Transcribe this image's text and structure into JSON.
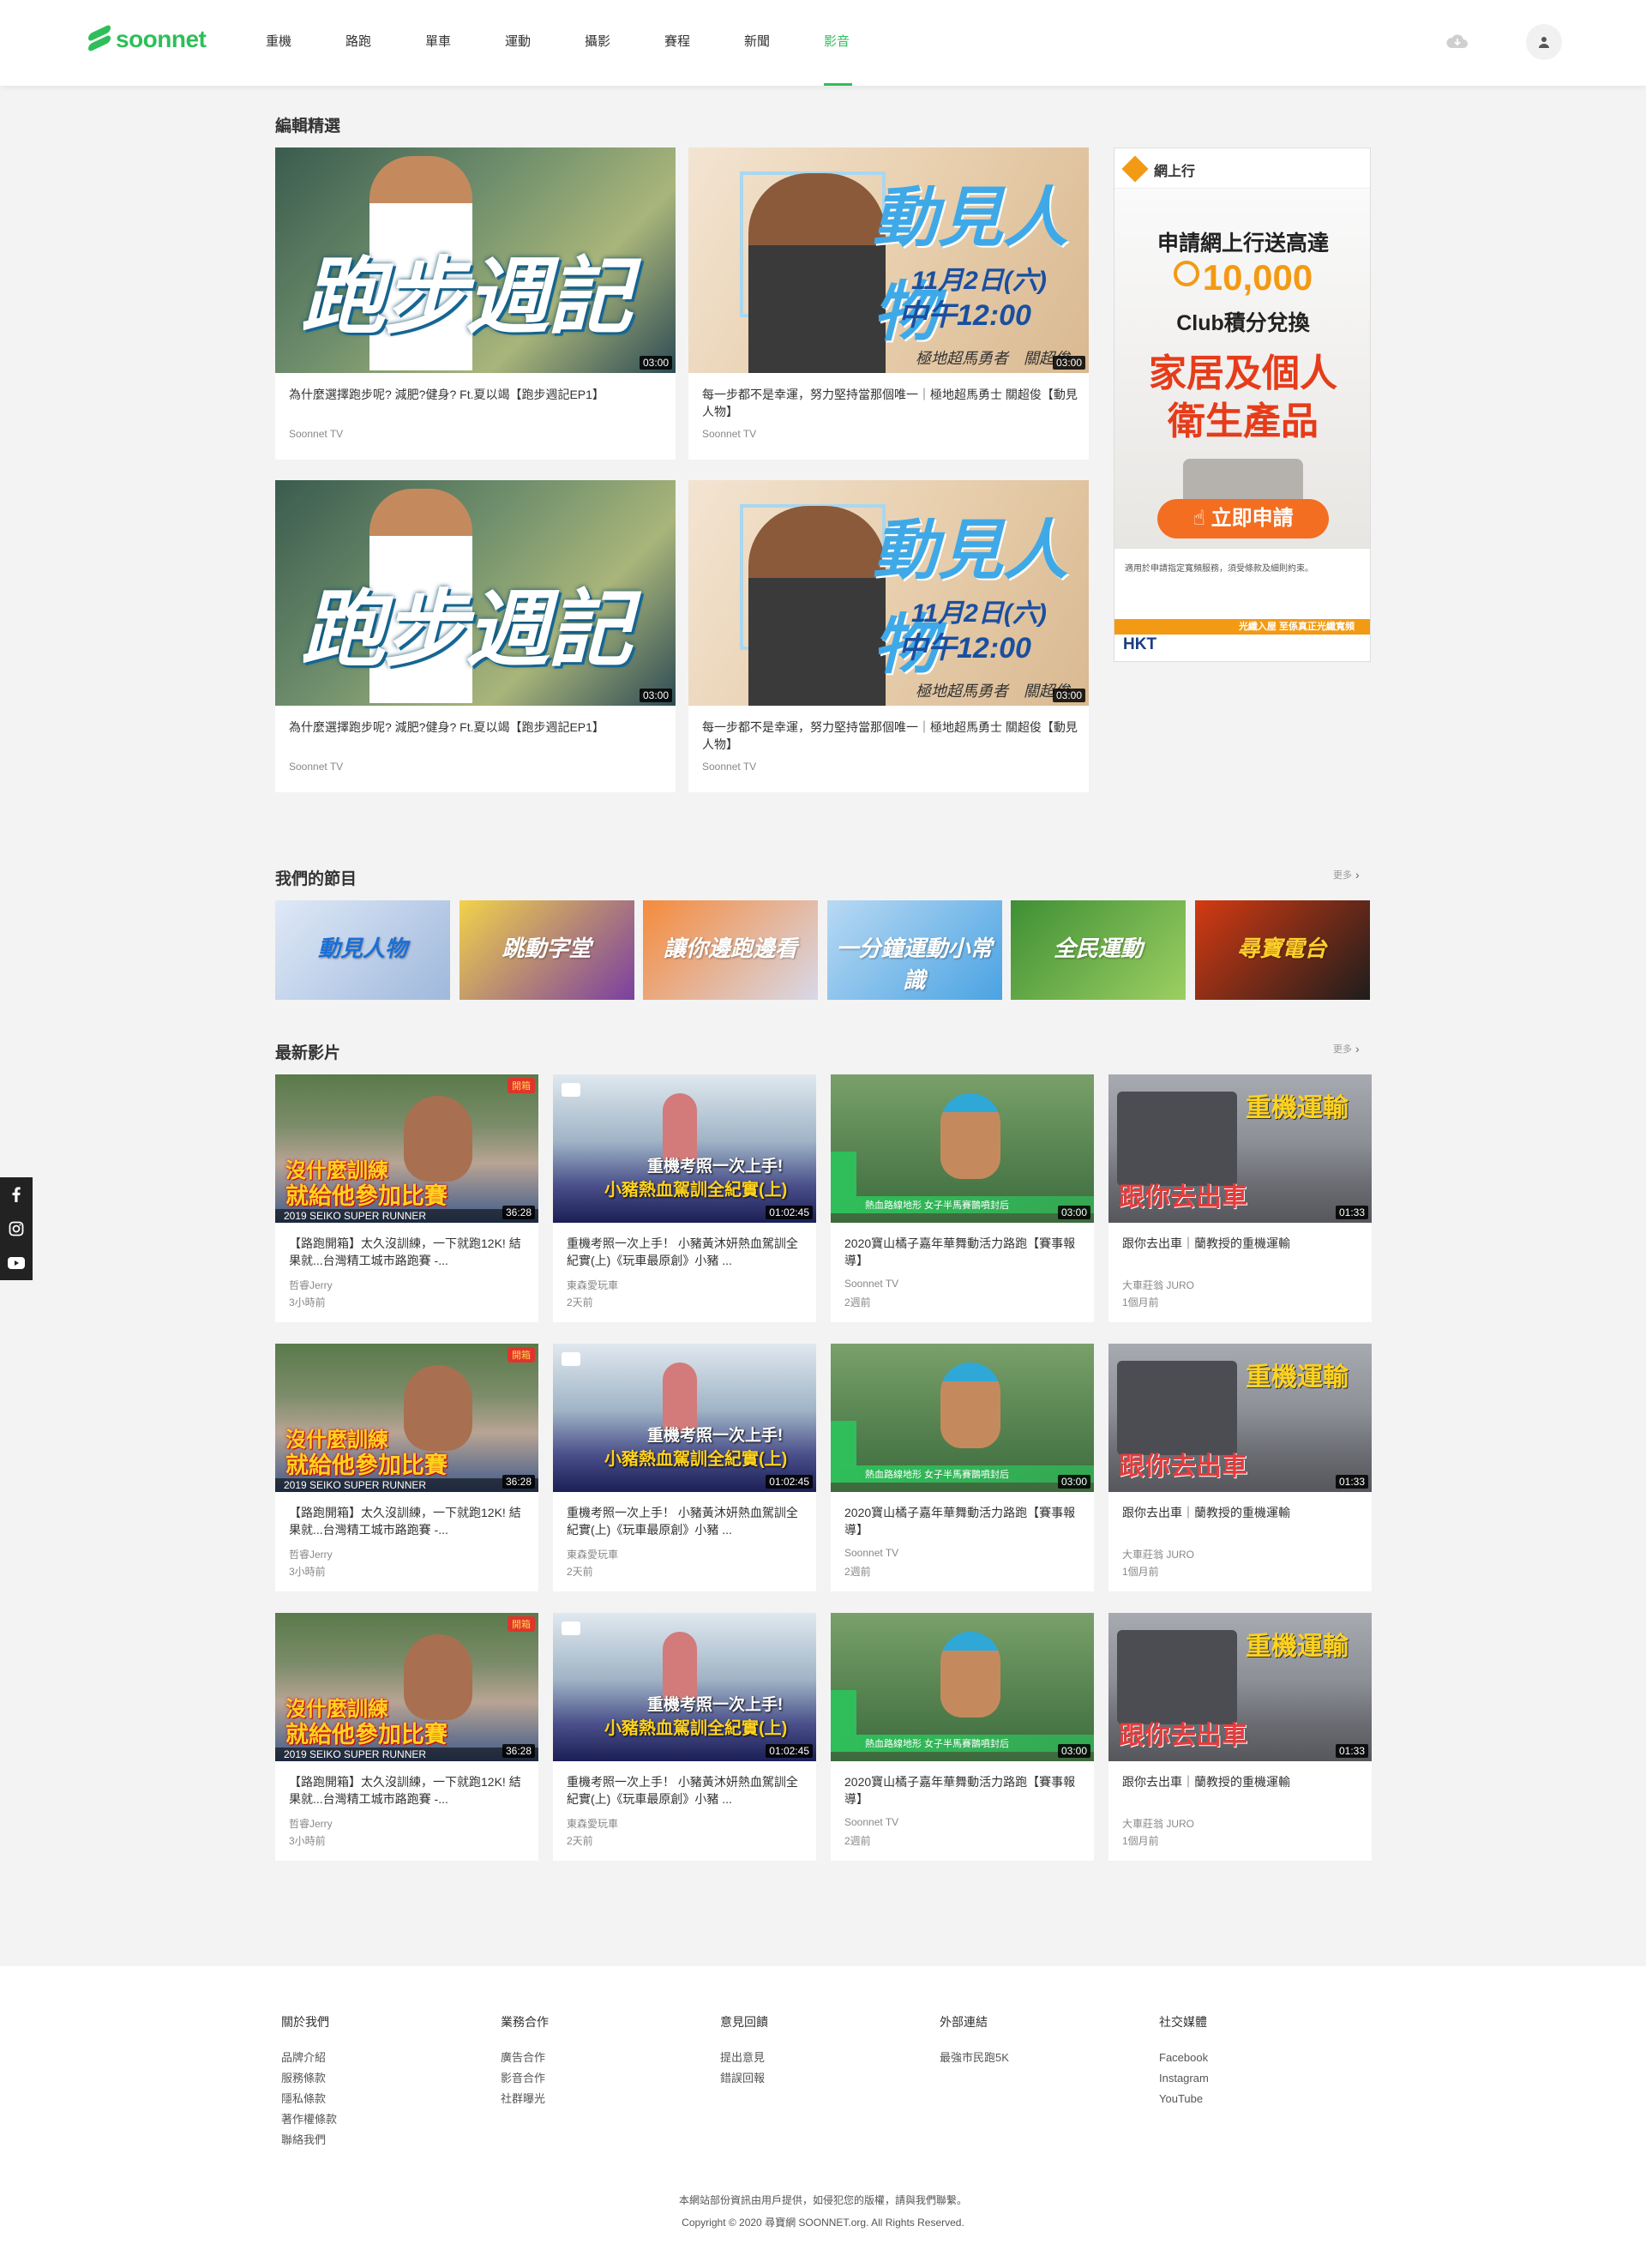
{
  "header": {
    "logo": "soonnet",
    "nav": [
      "重機",
      "路跑",
      "單車",
      "運動",
      "攝影",
      "賽程",
      "新聞",
      "影音"
    ],
    "active_index": 7,
    "icons": [
      "cloud-icon",
      "user-icon"
    ]
  },
  "featured": {
    "title": "編輯精選",
    "cards": [
      {
        "title": "為什麼選擇跑步呢? 減肥?健身? Ft.夏以竭【跑步週記EP1】",
        "author": "Soonnet TV",
        "duration": "03:00",
        "thumb_text": "跑步週記",
        "kind": "run"
      },
      {
        "title": "每一步都不是幸運，努力堅持當那個唯一｜極地超馬勇士 關超俊【動見人物】",
        "author": "Soonnet TV",
        "duration": "03:00",
        "thumb_text": "動見人物",
        "thumb_sub": "11月2日(六)",
        "thumb_time": "中午12:00",
        "thumb_tag": "極地超馬勇者　關超俊",
        "kind": "people"
      },
      {
        "title": "為什麼選擇跑步呢? 減肥?健身? Ft.夏以竭【跑步週記EP1】",
        "author": "Soonnet TV",
        "duration": "03:00",
        "thumb_text": "跑步週記",
        "kind": "run"
      },
      {
        "title": "每一步都不是幸運，努力堅持當那個唯一｜極地超馬勇士 關超俊【動見人物】",
        "author": "Soonnet TV",
        "duration": "03:00",
        "thumb_text": "動見人物",
        "thumb_sub": "11月2日(六)",
        "thumb_time": "中午12:00",
        "thumb_tag": "極地超馬勇者　關超俊",
        "kind": "people"
      }
    ]
  },
  "ad": {
    "brand": "網上行",
    "line1": "申請網上行送高達",
    "amount": "10,000",
    "line2": "Club積分兌換",
    "big1": "家居及個人",
    "big2": "衛生產品",
    "cta": "立即申請",
    "fine": "適用於申請指定寬頻服務，須受條款及細則約束。",
    "strip": "光纖入屋 至係真正光纖寬頻",
    "hkt": "HKT"
  },
  "programs": {
    "title": "我們的節目",
    "more": "更多",
    "items": [
      {
        "label": "動見人物",
        "color1": "#dfe9f7",
        "color2": "#9fb8dc",
        "tc": "#1a6fd6"
      },
      {
        "label": "跳動字堂",
        "color1": "#f2d24a",
        "color2": "#7b3fa0",
        "tc": "#fff"
      },
      {
        "label": "讓你邊跑邊看",
        "color1": "#f58b3c",
        "color2": "#d8d8e8",
        "tc": "#fff"
      },
      {
        "label": "一分鐘運動小常識",
        "color1": "#b9d9f3",
        "color2": "#4aa3e3",
        "tc": "#fff"
      },
      {
        "label": "全民運動",
        "color1": "#3f8f35",
        "color2": "#9ccf62",
        "tc": "#fff"
      },
      {
        "label": "尋寶電台",
        "color1": "#d43a12",
        "color2": "#1d1d1d",
        "tc": "#ffcf2b"
      }
    ]
  },
  "latest": {
    "title": "最新影片",
    "more": "更多",
    "videos": [
      {
        "title": "【路跑開箱】太久沒訓練，一下就跑12K! 結果就...台灣精工城市路跑賽 -...",
        "author": "哲睿Jerry",
        "time": "3小時前",
        "duration": "36:28",
        "thumb1": "沒什麼訓練",
        "thumb2": "就給他參加比賽",
        "thumb3": "2019 SEIKO SUPER RUNNER",
        "kind": "seiko"
      },
      {
        "title": "重機考照一次上手！ 小豬黃沐妍熱血駕訓全紀實(上)《玩車最原創》小豬 ...",
        "author": "東森愛玩車",
        "time": "2天前",
        "duration": "01:02:45",
        "thumb1": "重機考照一次上手!",
        "thumb2": "小豬熱血駕訓全紀實(上)",
        "kind": "moto"
      },
      {
        "title": "2020寶山橘子嘉年華舞動活力路跑【賽事報導】",
        "author": "Soonnet TV",
        "time": "2週前",
        "duration": "03:00",
        "thumb1": "熱血路線地形 女子半馬賽鵲噴封后",
        "kind": "race"
      },
      {
        "title": "跟你去出車｜蘭教授的重機運輸",
        "author": "大車莊翁 JURO",
        "time": "1個月前",
        "duration": "01:33",
        "thumb1": "重機運輸",
        "thumb2": "跟你去出車",
        "kind": "truck"
      },
      {
        "title": "【路跑開箱】太久沒訓練，一下就跑12K! 結果就...台灣精工城市路跑賽 -...",
        "author": "哲睿Jerry",
        "time": "3小時前",
        "duration": "36:28",
        "thumb1": "沒什麼訓練",
        "thumb2": "就給他參加比賽",
        "thumb3": "2019 SEIKO SUPER RUNNER",
        "kind": "seiko"
      },
      {
        "title": "重機考照一次上手！ 小豬黃沐妍熱血駕訓全紀實(上)《玩車最原創》小豬 ...",
        "author": "東森愛玩車",
        "time": "2天前",
        "duration": "01:02:45",
        "thumb1": "重機考照一次上手!",
        "thumb2": "小豬熱血駕訓全紀實(上)",
        "kind": "moto"
      },
      {
        "title": "2020寶山橘子嘉年華舞動活力路跑【賽事報導】",
        "author": "Soonnet TV",
        "time": "2週前",
        "duration": "03:00",
        "thumb1": "熱血路線地形 女子半馬賽鵲噴封后",
        "kind": "race"
      },
      {
        "title": "跟你去出車｜蘭教授的重機運輸",
        "author": "大車莊翁 JURO",
        "time": "1個月前",
        "duration": "01:33",
        "thumb1": "重機運輸",
        "thumb2": "跟你去出車",
        "kind": "truck"
      },
      {
        "title": "【路跑開箱】太久沒訓練，一下就跑12K! 結果就...台灣精工城市路跑賽 -...",
        "author": "哲睿Jerry",
        "time": "3小時前",
        "duration": "36:28",
        "thumb1": "沒什麼訓練",
        "thumb2": "就給他參加比賽",
        "thumb3": "2019 SEIKO SUPER RUNNER",
        "kind": "seiko"
      },
      {
        "title": "重機考照一次上手！ 小豬黃沐妍熱血駕訓全紀實(上)《玩車最原創》小豬 ...",
        "author": "東森愛玩車",
        "time": "2天前",
        "duration": "01:02:45",
        "thumb1": "重機考照一次上手!",
        "thumb2": "小豬熱血駕訓全紀實(上)",
        "kind": "moto"
      },
      {
        "title": "2020寶山橘子嘉年華舞動活力路跑【賽事報導】",
        "author": "Soonnet TV",
        "time": "2週前",
        "duration": "03:00",
        "thumb1": "熱血路線地形 女子半馬賽鵲噴封后",
        "kind": "race"
      },
      {
        "title": "跟你去出車｜蘭教授的重機運輸",
        "author": "大車莊翁 JURO",
        "time": "1個月前",
        "duration": "01:33",
        "thumb1": "重機運輸",
        "thumb2": "跟你去出車",
        "kind": "truck"
      }
    ]
  },
  "social_side": [
    "facebook-icon",
    "instagram-icon",
    "youtube-icon"
  ],
  "footer": {
    "columns": [
      {
        "title": "關於我們",
        "items": [
          "品牌介紹",
          "服務條款",
          "隱私條款",
          "著作權條款",
          "聯絡我們"
        ]
      },
      {
        "title": "業務合作",
        "items": [
          "廣告合作",
          "影音合作",
          "社群曝光"
        ]
      },
      {
        "title": "意見回饋",
        "items": [
          "提出意見",
          "錯誤回報"
        ]
      },
      {
        "title": "外部連結",
        "items": [
          "最強市民跑5K"
        ]
      },
      {
        "title": "社交媒體",
        "items": [
          "Facebook",
          "Instagram",
          "YouTube"
        ]
      }
    ],
    "notice": "本網站部份資訊由用戶提供，如侵犯您的版權，請與我們聯繫。",
    "copyright": "Copyright © 2020 尋寶網 SOONNET.org. All Rights Reserved."
  },
  "colors": {
    "accent": "#2fbe5a",
    "bg": "#f3f3f3"
  }
}
